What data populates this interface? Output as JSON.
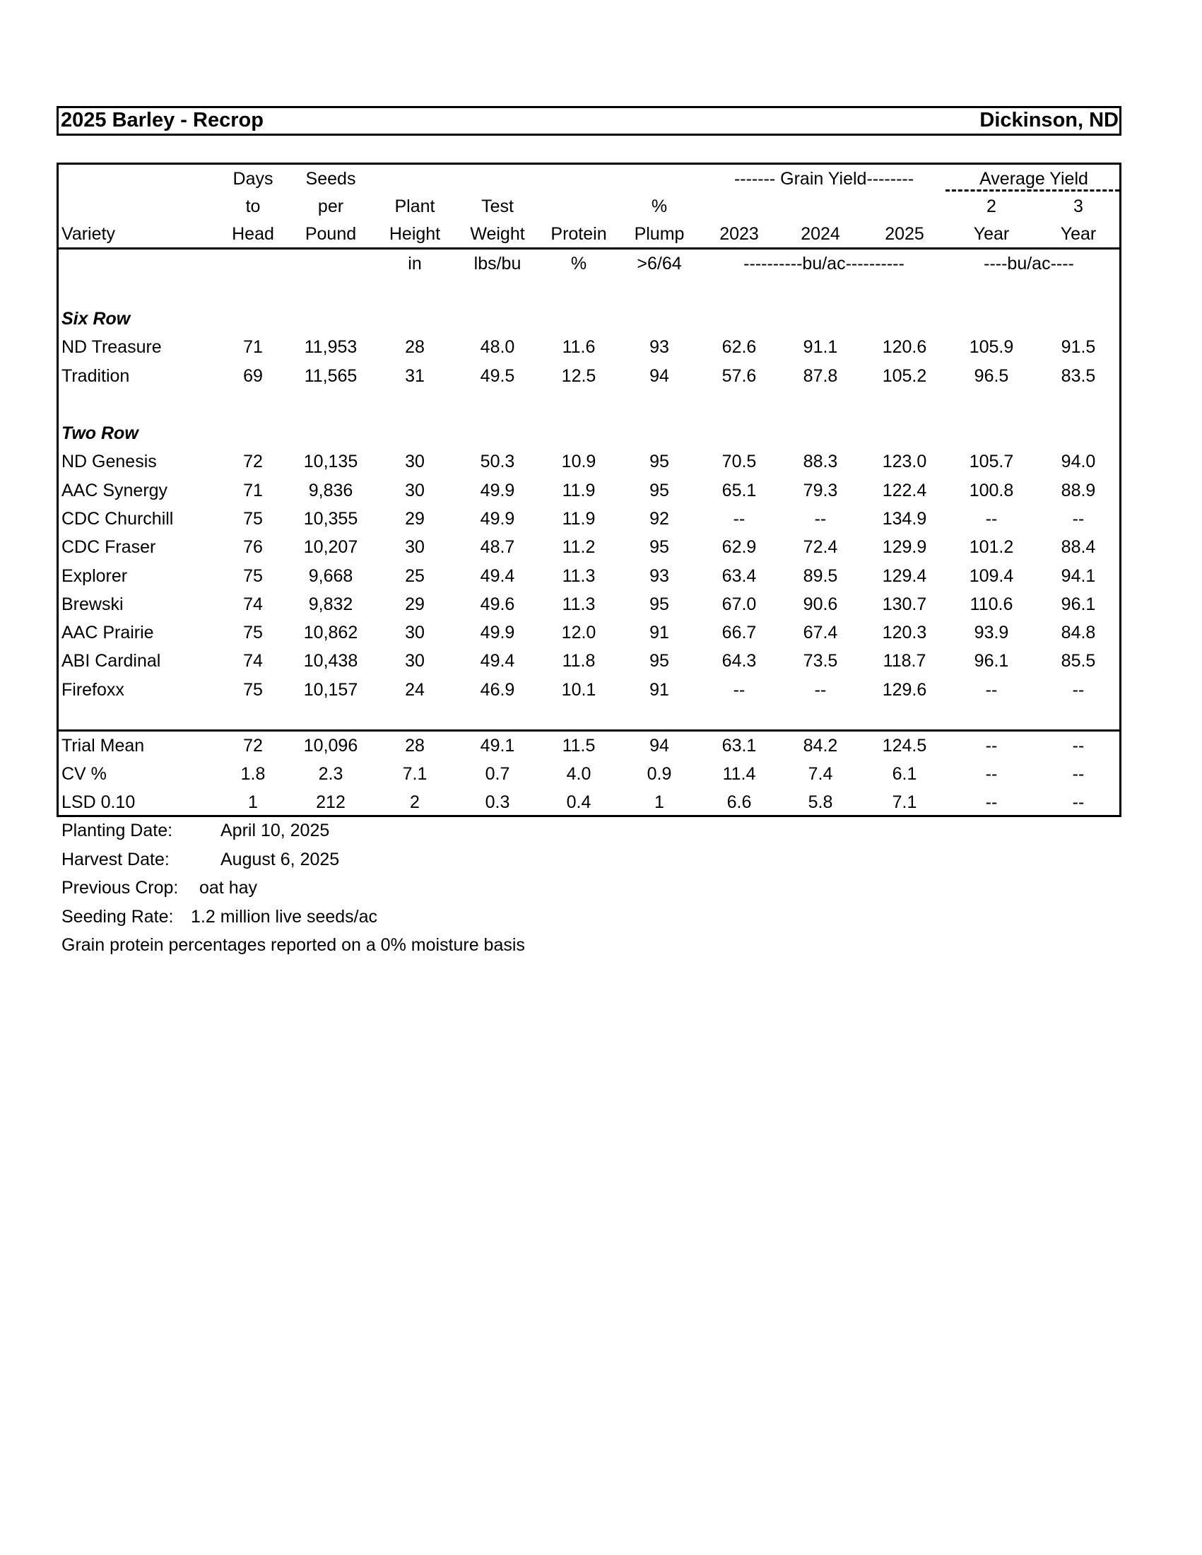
{
  "header": {
    "title": "2025 Barley - Recrop",
    "location": "Dickinson, ND"
  },
  "columns": [
    {
      "lines": [
        "",
        "",
        "Variety"
      ],
      "unit": ""
    },
    {
      "lines": [
        "Days",
        "to",
        "Head"
      ],
      "unit": ""
    },
    {
      "lines": [
        "Seeds",
        "per",
        "Pound"
      ],
      "unit": ""
    },
    {
      "lines": [
        "",
        "Plant",
        "Height"
      ],
      "unit": "in"
    },
    {
      "lines": [
        "",
        "Test",
        "Weight"
      ],
      "unit": "lbs/bu"
    },
    {
      "lines": [
        "",
        "",
        "Protein"
      ],
      "unit": "%"
    },
    {
      "lines": [
        "",
        "%",
        "Plump"
      ],
      "unit": ">6/64"
    },
    {
      "lines": [
        "",
        "",
        "2023"
      ],
      "unit": ""
    },
    {
      "lines": [
        "",
        "",
        "2024"
      ],
      "unit": ""
    },
    {
      "lines": [
        "",
        "",
        "2025"
      ],
      "unit": ""
    },
    {
      "lines": [
        "",
        "2",
        "Year"
      ],
      "unit": ""
    },
    {
      "lines": [
        "",
        "3",
        "Year"
      ],
      "unit": ""
    }
  ],
  "group_headers": {
    "grain_yield": "------- Grain Yield--------",
    "average_yield": "Average Yield",
    "grain_yield_unit": "----------bu/ac----------",
    "average_yield_unit": "----bu/ac----"
  },
  "sections": [
    {
      "label": "Six Row",
      "rows": [
        [
          "ND Treasure",
          "71",
          "11,953",
          "28",
          "48.0",
          "11.6",
          "93",
          "62.6",
          "91.1",
          "120.6",
          "105.9",
          "91.5"
        ],
        [
          "Tradition",
          "69",
          "11,565",
          "31",
          "49.5",
          "12.5",
          "94",
          "57.6",
          "87.8",
          "105.2",
          "96.5",
          "83.5"
        ]
      ]
    },
    {
      "label": "Two Row",
      "rows": [
        [
          "ND Genesis",
          "72",
          "10,135",
          "30",
          "50.3",
          "10.9",
          "95",
          "70.5",
          "88.3",
          "123.0",
          "105.7",
          "94.0"
        ],
        [
          "AAC Synergy",
          "71",
          "9,836",
          "30",
          "49.9",
          "11.9",
          "95",
          "65.1",
          "79.3",
          "122.4",
          "100.8",
          "88.9"
        ],
        [
          "CDC Churchill",
          "75",
          "10,355",
          "29",
          "49.9",
          "11.9",
          "92",
          "--",
          "--",
          "134.9",
          "--",
          "--"
        ],
        [
          "CDC Fraser",
          "76",
          "10,207",
          "30",
          "48.7",
          "11.2",
          "95",
          "62.9",
          "72.4",
          "129.9",
          "101.2",
          "88.4"
        ],
        [
          "Explorer",
          "75",
          "9,668",
          "25",
          "49.4",
          "11.3",
          "93",
          "63.4",
          "89.5",
          "129.4",
          "109.4",
          "94.1"
        ],
        [
          "Brewski",
          "74",
          "9,832",
          "29",
          "49.6",
          "11.3",
          "95",
          "67.0",
          "90.6",
          "130.7",
          "110.6",
          "96.1"
        ],
        [
          "AAC Prairie",
          "75",
          "10,862",
          "30",
          "49.9",
          "12.0",
          "91",
          "66.7",
          "67.4",
          "120.3",
          "93.9",
          "84.8"
        ],
        [
          "ABI Cardinal",
          "74",
          "10,438",
          "30",
          "49.4",
          "11.8",
          "95",
          "64.3",
          "73.5",
          "118.7",
          "96.1",
          "85.5"
        ],
        [
          "Firefoxx",
          "75",
          "10,157",
          "24",
          "46.9",
          "10.1",
          "91",
          "--",
          "--",
          "129.6",
          "--",
          "--"
        ]
      ]
    }
  ],
  "summary": [
    [
      "Trial Mean",
      "72",
      "10,096",
      "28",
      "49.1",
      "11.5",
      "94",
      "63.1",
      "84.2",
      "124.5",
      "--",
      "--"
    ],
    [
      "CV %",
      "1.8",
      "2.3",
      "7.1",
      "0.7",
      "4.0",
      "0.9",
      "11.4",
      "7.4",
      "6.1",
      "--",
      "--"
    ],
    [
      "LSD 0.10",
      "1",
      "212",
      "2",
      "0.3",
      "0.4",
      "1",
      "6.6",
      "5.8",
      "7.1",
      "--",
      "--"
    ]
  ],
  "notes": [
    {
      "label": "Planting Date:",
      "value": "April 10, 2025"
    },
    {
      "label": "Harvest Date:",
      "value": "August 6, 2025"
    },
    {
      "label": "Previous Crop:",
      "value": "oat hay"
    },
    {
      "label": "Seeding Rate:",
      "value": "1.2 million live seeds/ac"
    },
    {
      "label": "Grain protein percentages reported on a 0% moisture basis",
      "value": ""
    }
  ]
}
